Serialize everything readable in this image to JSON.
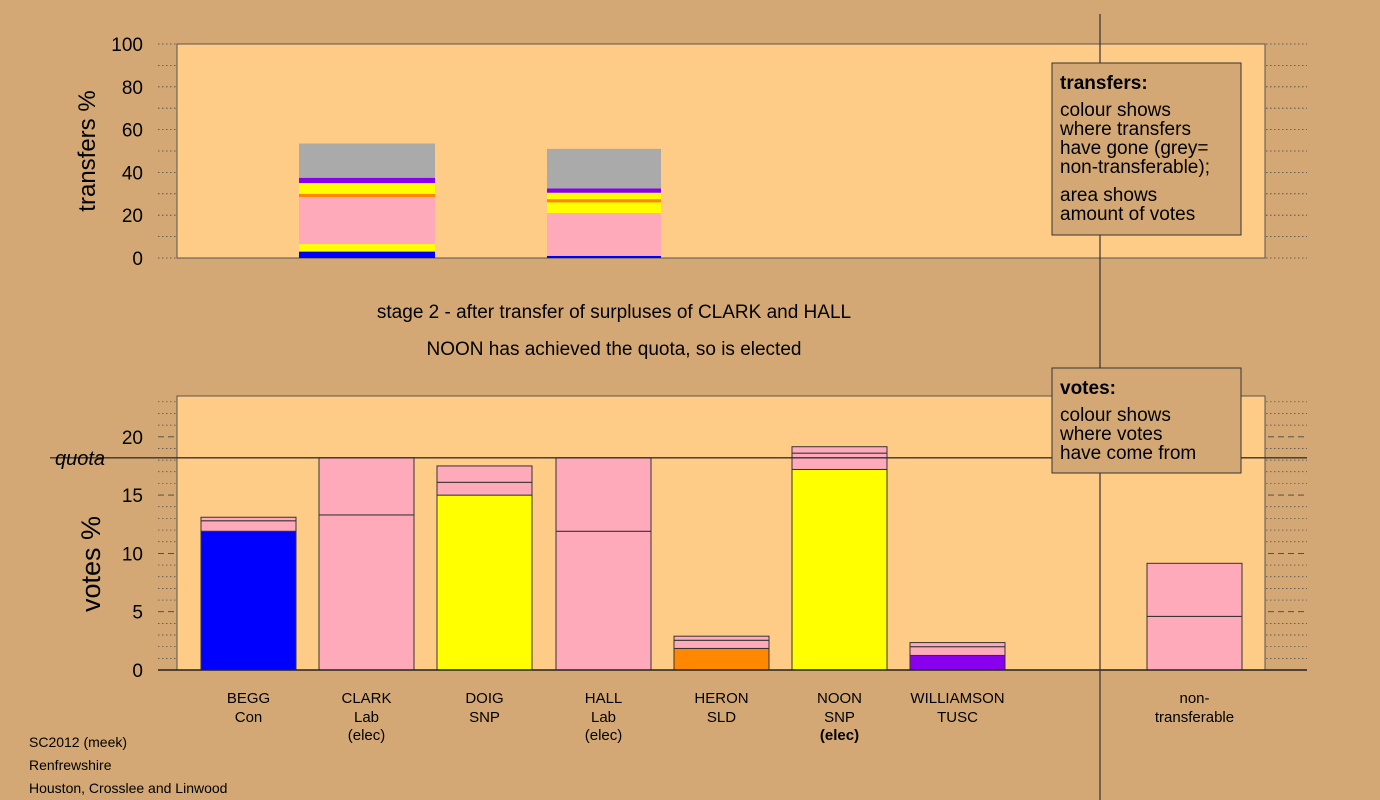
{
  "colors": {
    "page_bg": "#d4a874",
    "plot_bg": "#ffcc88",
    "blue": "#0000ff",
    "pink": "#ffaabb",
    "yellow": "#ffff00",
    "orange": "#ff8800",
    "purple": "#8800ee",
    "grey": "#aaaaaa"
  },
  "header": {
    "stage": "stage 2 - after transfer of surpluses of CLARK and HALL",
    "status": "NOON has achieved the quota, so is elected"
  },
  "footer": {
    "system": "SC2012 (meek)",
    "council": "Renfrewshire",
    "ward": "Houston, Crosslee and Linwood"
  },
  "chart_data": [
    {
      "id": "transfers",
      "type": "bar",
      "stacked": true,
      "ylabel": "transfers %",
      "ylim": [
        0,
        100
      ],
      "yticks": [
        0,
        20,
        40,
        60,
        80,
        100
      ],
      "legend": {
        "title": "transfers:",
        "lines1": [
          "colour shows",
          "where transfers",
          "have gone (grey=",
          "non-transferable);"
        ],
        "lines2": [
          "area shows",
          "amount of votes"
        ]
      },
      "bars": [
        {
          "candidate": "CLARK",
          "segments": [
            {
              "color": "blue",
              "value": 3
            },
            {
              "color": "yellow",
              "value": 3.5
            },
            {
              "color": "pink",
              "value": 22
            },
            {
              "color": "orange",
              "value": 1.5
            },
            {
              "color": "yellow",
              "value": 5
            },
            {
              "color": "purple",
              "value": 2.5
            },
            {
              "color": "grey",
              "value": 16
            }
          ]
        },
        {
          "candidate": "HALL",
          "segments": [
            {
              "color": "blue",
              "value": 1
            },
            {
              "color": "pink",
              "value": 20
            },
            {
              "color": "yellow",
              "value": 5
            },
            {
              "color": "orange",
              "value": 1.5
            },
            {
              "color": "yellow",
              "value": 3
            },
            {
              "color": "purple",
              "value": 2
            },
            {
              "color": "grey",
              "value": 18.5
            }
          ]
        }
      ]
    },
    {
      "id": "votes",
      "type": "bar",
      "stacked": true,
      "ylabel": "votes %",
      "ylim": [
        0,
        23.5
      ],
      "yticks": [
        0,
        5,
        10,
        15,
        20
      ],
      "quota": 18.2,
      "quota_label": "quota",
      "legend": {
        "title": "votes:",
        "lines1": [
          "colour shows",
          "where votes",
          "have come from"
        ]
      },
      "categories": [
        {
          "name": "BEGG",
          "party": "Con",
          "status": ""
        },
        {
          "name": "CLARK",
          "party": "Lab",
          "status": "(elec)"
        },
        {
          "name": "DOIG",
          "party": "SNP",
          "status": ""
        },
        {
          "name": "HALL",
          "party": "Lab",
          "status": "(elec)"
        },
        {
          "name": "HERON",
          "party": "SLD",
          "status": ""
        },
        {
          "name": "NOON",
          "party": "SNP",
          "status": "(elec)"
        },
        {
          "name": "WILLIAMSON",
          "party": "TUSC",
          "status": ""
        }
      ],
      "nontransferable_label": [
        "non-",
        "transferable"
      ],
      "bars": [
        {
          "candidate": "BEGG",
          "segments": [
            {
              "color": "blue",
              "value": 11.9
            },
            {
              "color": "pink",
              "value": 0.9
            },
            {
              "color": "pink",
              "value": 0.3
            }
          ]
        },
        {
          "candidate": "CLARK",
          "segments": [
            {
              "color": "pink",
              "value": 13.3
            },
            {
              "color": "pink",
              "value": 4.9
            }
          ]
        },
        {
          "candidate": "DOIG",
          "segments": [
            {
              "color": "yellow",
              "value": 15.0
            },
            {
              "color": "pink",
              "value": 1.1
            },
            {
              "color": "pink",
              "value": 1.4
            }
          ]
        },
        {
          "candidate": "HALL",
          "segments": [
            {
              "color": "pink",
              "value": 11.9
            },
            {
              "color": "pink",
              "value": 6.3
            }
          ]
        },
        {
          "candidate": "HERON",
          "segments": [
            {
              "color": "orange",
              "value": 1.85
            },
            {
              "color": "pink",
              "value": 0.7
            },
            {
              "color": "pink",
              "value": 0.35
            }
          ]
        },
        {
          "candidate": "NOON",
          "segments": [
            {
              "color": "yellow",
              "value": 17.2
            },
            {
              "color": "pink",
              "value": 1.4
            },
            {
              "color": "pink",
              "value": 0.55
            }
          ]
        },
        {
          "candidate": "WILLIAMSON",
          "segments": [
            {
              "color": "purple",
              "value": 1.25
            },
            {
              "color": "pink",
              "value": 0.75
            },
            {
              "color": "pink",
              "value": 0.35
            }
          ]
        },
        {
          "candidate": "non-transferable",
          "segments": [
            {
              "color": "pink",
              "value": 4.6
            },
            {
              "color": "pink",
              "value": 4.55
            }
          ]
        }
      ]
    }
  ]
}
